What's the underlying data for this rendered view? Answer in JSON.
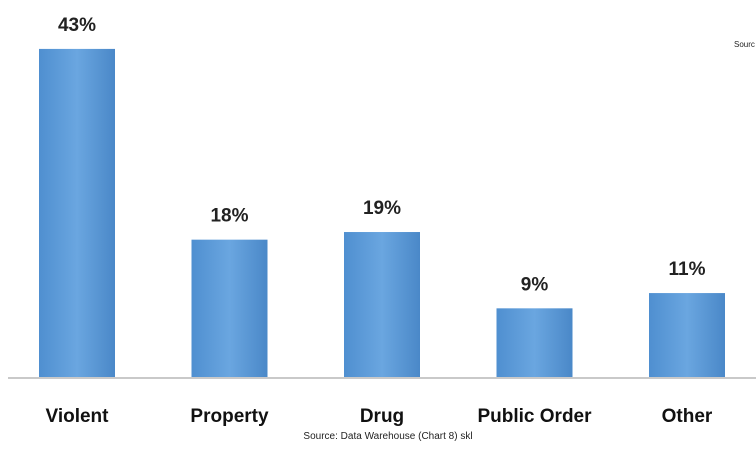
{
  "chart_data": {
    "type": "bar",
    "categories": [
      "Violent",
      "Property",
      "Drug",
      "Public Order",
      "Other"
    ],
    "values": [
      43,
      18,
      19,
      9,
      11
    ],
    "value_labels": [
      "43%",
      "18%",
      "19%",
      "9%",
      "11%"
    ],
    "title": "",
    "xlabel": "",
    "ylabel": "",
    "ylim": [
      0,
      45
    ],
    "grid": false,
    "bar_color": "#5b9bd5",
    "source": "Source: Data Warehouse (Chart 8) skl",
    "source_corner": "Sourc"
  }
}
